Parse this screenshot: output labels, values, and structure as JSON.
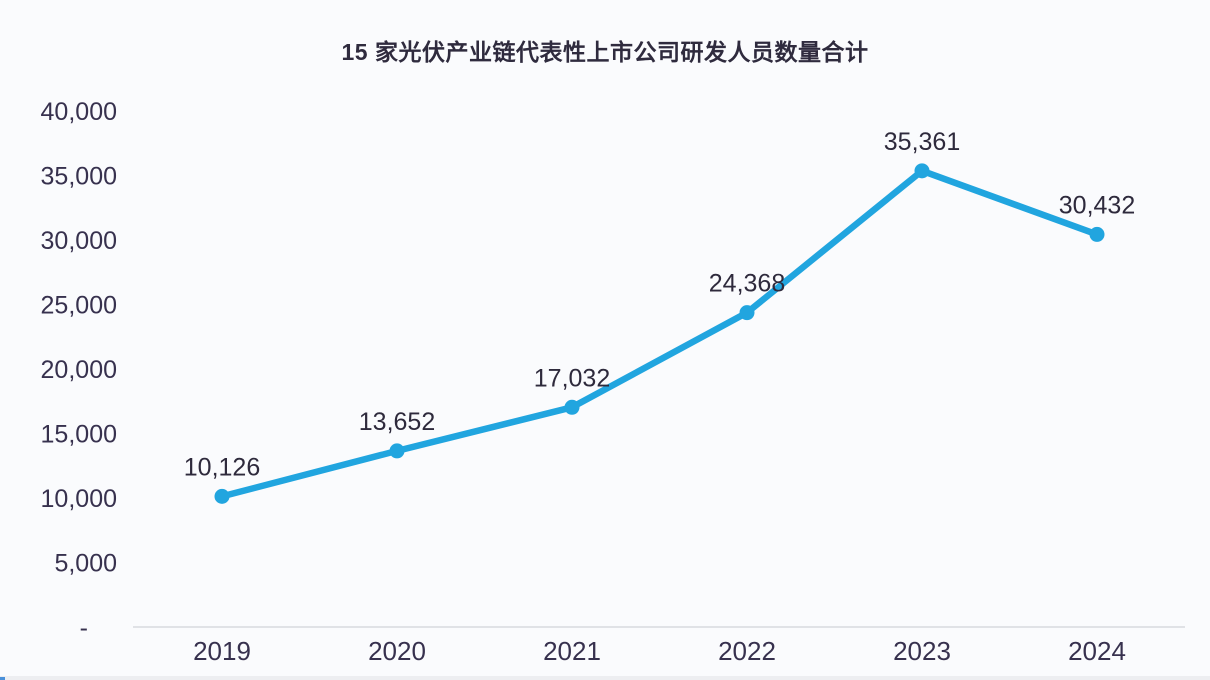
{
  "title": "15 家光伏产业链代表性上市公司研发人员数量合计",
  "chart_data": {
    "type": "line",
    "title": "15 家光伏产业链代表性上市公司研发人员数量合计",
    "categories": [
      "2019",
      "2020",
      "2021",
      "2022",
      "2023",
      "2024"
    ],
    "values": [
      10126,
      13652,
      17032,
      24368,
      35361,
      30432
    ],
    "data_labels": [
      "10,126",
      "13,652",
      "17,032",
      "24,368",
      "35,361",
      "30,432"
    ],
    "xlabel": "",
    "ylabel": "",
    "ylim": [
      0,
      40000
    ],
    "ytick_interval": 5000,
    "ytick_labels": [
      "-",
      "5,000",
      "10,000",
      "15,000",
      "20,000",
      "25,000",
      "30,000",
      "35,000",
      "40,000"
    ],
    "grid": false,
    "legend": "none",
    "marker": "circle",
    "series_name": "研发人员数量合计"
  },
  "colors": {
    "line": "#21A5DF",
    "marker": "#21A5DF",
    "tick_text": "#37314E",
    "data_label_text": "#2E2A3C",
    "title_text": "#2F2B3E",
    "axis_line": "#D8D9DE",
    "background": "#FAFBFD",
    "bottom_strip": "#EDEEF1",
    "corner_speck": "#4A90D9"
  }
}
